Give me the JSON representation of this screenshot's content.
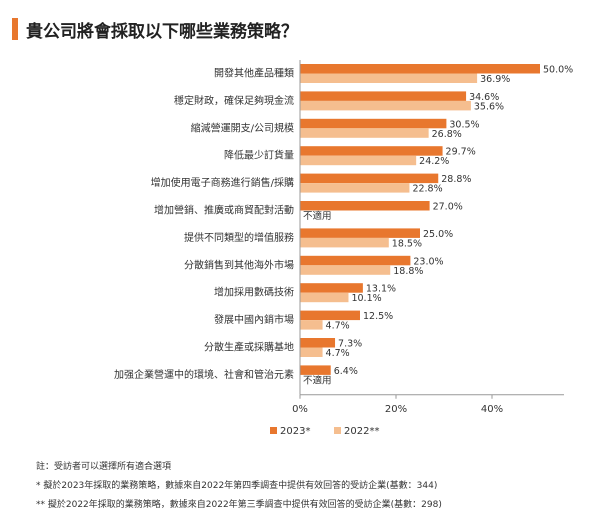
{
  "title": "貴公司將會採取以下哪些業務策略？",
  "chart_data": {
    "type": "bar",
    "orientation": "horizontal",
    "categories": [
      "開發其他產品種類",
      "穩定財政，確保足夠現金流",
      "縮減營運開支/公司規模",
      "降低最少訂貨量",
      "增加使用電子商務進行銷售/採購",
      "增加營銷、推廣或商貿配對活動",
      "提供不同類型的增值服務",
      "分散銷售到其他海外市場",
      "增加採用數碼技術",
      "發展中國內銷市場",
      "分散生產或採購基地",
      "加强企業營運中的環境、社會和管治元素"
    ],
    "series": [
      {
        "name": "2023*",
        "color": "#E8772E",
        "values": [
          50.0,
          34.6,
          30.5,
          29.7,
          28.8,
          27.0,
          25.0,
          23.0,
          13.1,
          12.5,
          7.3,
          6.4
        ],
        "labels": [
          "50.0%",
          "34.6%",
          "30.5%",
          "29.7%",
          "28.8%",
          "27.0%",
          "25.0%",
          "23.0%",
          "13.1%",
          "12.5%",
          "7.3%",
          "6.4%"
        ]
      },
      {
        "name": "2022**",
        "color": "#F5BE8F",
        "values": [
          36.9,
          35.6,
          26.8,
          24.2,
          22.8,
          null,
          18.5,
          18.8,
          10.1,
          4.7,
          4.7,
          null
        ],
        "labels": [
          "36.9%",
          "35.6%",
          "26.8%",
          "24.2%",
          "22.8%",
          "不適用",
          "18.5%",
          "18.8%",
          "10.1%",
          "4.7%",
          "4.7%",
          "不適用"
        ]
      }
    ],
    "xlim": [
      0,
      55
    ],
    "xticks": [
      "0%",
      "20%",
      "40%"
    ],
    "xtick_values": [
      0,
      20,
      40
    ],
    "legend_position": "bottom",
    "grid": false
  },
  "notes": [
    "註：受訪者可以選擇所有適合選項",
    "*  擬於2023年採取的業務策略，數據來自2022年第四季調查中提供有效回答的受訪企業(基數：344)",
    "**  擬於2022年採取的業務策略，數據來自2022年第三季調查中提供有效回答的受訪企業(基數：298)"
  ]
}
